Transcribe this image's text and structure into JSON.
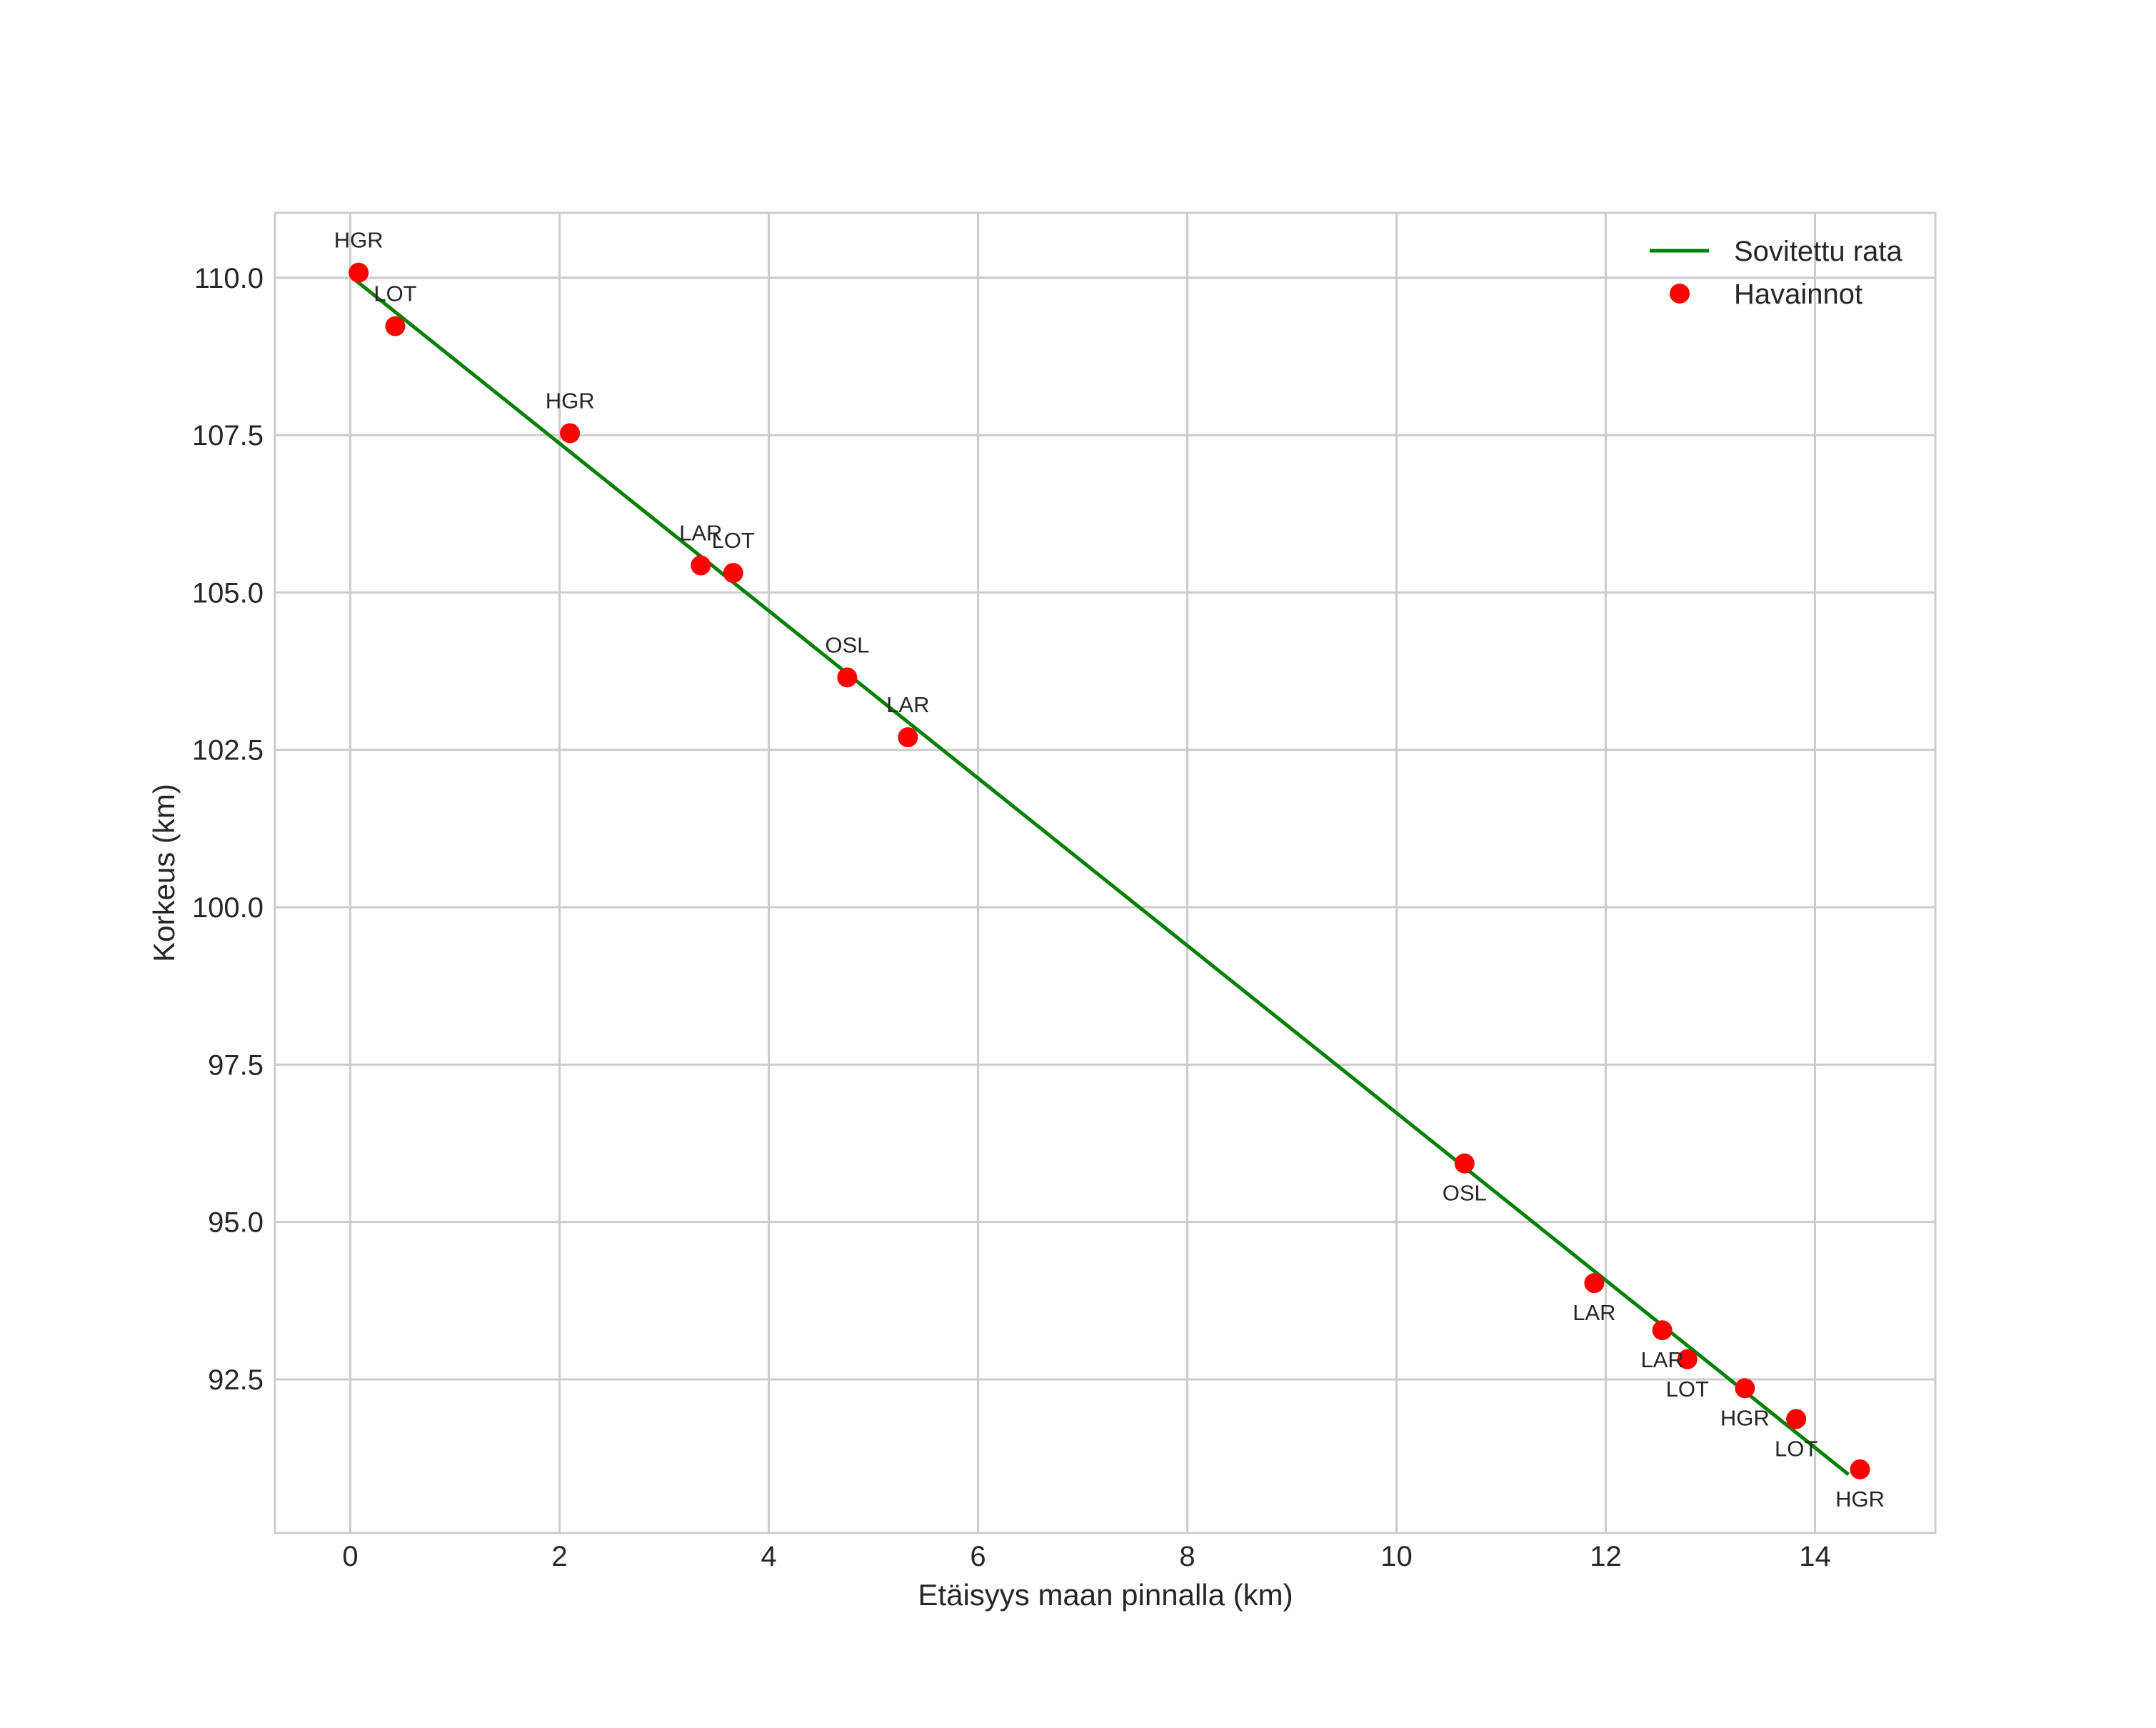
{
  "chart_data": {
    "type": "scatter",
    "title": "",
    "xlabel": "Etäisyys maan pinnalla (km)",
    "ylabel": "Korkeus (km)",
    "xlim": [
      -0.72,
      15.15
    ],
    "ylim": [
      90.06,
      111.03
    ],
    "xticks": [
      0,
      2,
      4,
      6,
      8,
      10,
      12,
      14
    ],
    "xtick_labels": [
      "0",
      "2",
      "4",
      "6",
      "8",
      "10",
      "12",
      "14"
    ],
    "yticks": [
      92.5,
      95.0,
      97.5,
      100.0,
      102.5,
      105.0,
      107.5,
      110.0
    ],
    "ytick_labels": [
      "92.5",
      "95.0",
      "97.5",
      "100.0",
      "102.5",
      "105.0",
      "107.5",
      "110.0"
    ],
    "grid": true,
    "legend": {
      "position": "upper right",
      "entries": [
        {
          "label": "Sovitettu rata",
          "marker": "line",
          "color": "#008000"
        },
        {
          "label": "Havainnot",
          "marker": "circle",
          "color": "#ff0000"
        }
      ]
    },
    "series": [
      {
        "name": "Sovitettu rata",
        "kind": "line",
        "color": "#008000",
        "x": [
          0.05,
          14.32
        ],
        "y": [
          109.96,
          90.99
        ]
      },
      {
        "name": "Havainnot",
        "kind": "scatter",
        "color": "#ff0000",
        "points": [
          {
            "x": 0.08,
            "y": 110.08,
            "label": "HGR",
            "label_pos": "above"
          },
          {
            "x": 0.43,
            "y": 109.23,
            "label": "LOT",
            "label_pos": "above"
          },
          {
            "x": 2.1,
            "y": 107.53,
            "label": "HGR",
            "label_pos": "above"
          },
          {
            "x": 3.35,
            "y": 105.43,
            "label": "LAR",
            "label_pos": "above"
          },
          {
            "x": 3.66,
            "y": 105.31,
            "label": "LOT",
            "label_pos": "above"
          },
          {
            "x": 4.75,
            "y": 103.65,
            "label": "OSL",
            "label_pos": "above"
          },
          {
            "x": 5.33,
            "y": 102.7,
            "label": "LAR",
            "label_pos": "above"
          },
          {
            "x": 10.65,
            "y": 95.93,
            "label": "OSL",
            "label_pos": "below"
          },
          {
            "x": 11.89,
            "y": 94.03,
            "label": "LAR",
            "label_pos": "below"
          },
          {
            "x": 12.54,
            "y": 93.28,
            "label": "LAR",
            "label_pos": "below"
          },
          {
            "x": 12.78,
            "y": 92.82,
            "label": "LOT",
            "label_pos": "below"
          },
          {
            "x": 13.33,
            "y": 92.36,
            "label": "HGR",
            "label_pos": "below"
          },
          {
            "x": 13.82,
            "y": 91.87,
            "label": "LOT",
            "label_pos": "below"
          },
          {
            "x": 14.43,
            "y": 91.07,
            "label": "HGR",
            "label_pos": "below"
          }
        ]
      }
    ]
  },
  "colors": {
    "fit_line": "#008000",
    "observations": "#ff0000",
    "grid": "#cccccc",
    "text": "#262626"
  }
}
